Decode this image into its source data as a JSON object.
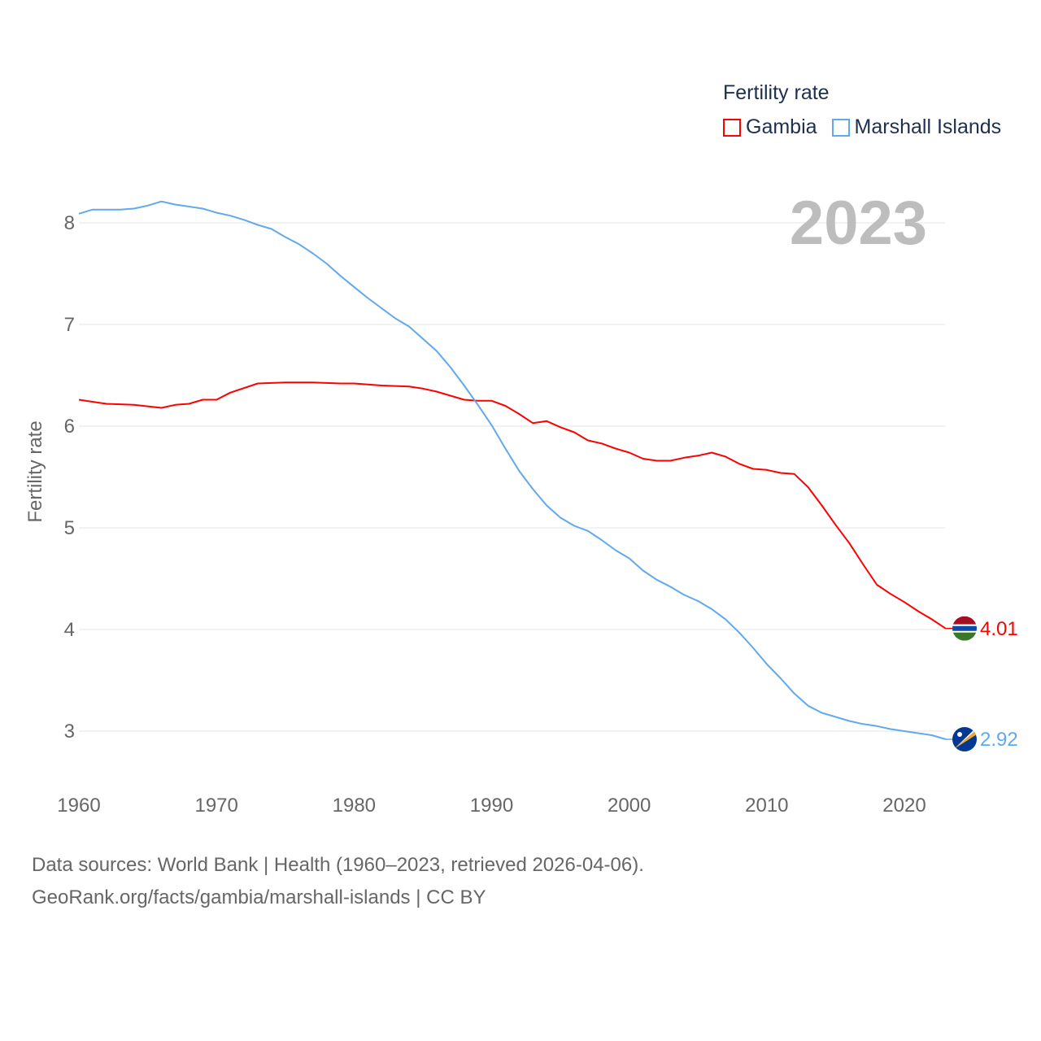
{
  "chart_data": {
    "type": "line",
    "title": "Fertility rate",
    "ylabel": "Fertility rate",
    "xlabel": "",
    "year_label": "2023",
    "xlim": [
      1960,
      2023
    ],
    "ylim": [
      2.5,
      8.2
    ],
    "x_ticks": [
      1960,
      1970,
      1980,
      1990,
      2000,
      2010,
      2020
    ],
    "y_ticks": [
      3,
      4,
      5,
      6,
      7,
      8
    ],
    "grid": true,
    "legend_position": "top-right",
    "series": [
      {
        "name": "Gambia",
        "color": "#ff0000",
        "end_label": "4.01",
        "points": [
          [
            1960,
            6.26
          ],
          [
            1962,
            6.22
          ],
          [
            1964,
            6.21
          ],
          [
            1966,
            6.18
          ],
          [
            1967,
            6.21
          ],
          [
            1968,
            6.22
          ],
          [
            1969,
            6.26
          ],
          [
            1970,
            6.26
          ],
          [
            1971,
            6.33
          ],
          [
            1973,
            6.42
          ],
          [
            1975,
            6.43
          ],
          [
            1977,
            6.43
          ],
          [
            1979,
            6.42
          ],
          [
            1980,
            6.42
          ],
          [
            1982,
            6.4
          ],
          [
            1984,
            6.39
          ],
          [
            1985,
            6.37
          ],
          [
            1986,
            6.34
          ],
          [
            1988,
            6.26
          ],
          [
            1989,
            6.25
          ],
          [
            1990,
            6.25
          ],
          [
            1991,
            6.2
          ],
          [
            1992,
            6.12
          ],
          [
            1993,
            6.03
          ],
          [
            1994,
            6.05
          ],
          [
            1995,
            5.99
          ],
          [
            1996,
            5.94
          ],
          [
            1997,
            5.86
          ],
          [
            1998,
            5.83
          ],
          [
            1999,
            5.78
          ],
          [
            2000,
            5.74
          ],
          [
            2001,
            5.68
          ],
          [
            2002,
            5.66
          ],
          [
            2003,
            5.66
          ],
          [
            2004,
            5.69
          ],
          [
            2005,
            5.71
          ],
          [
            2006,
            5.74
          ],
          [
            2007,
            5.7
          ],
          [
            2008,
            5.63
          ],
          [
            2009,
            5.58
          ],
          [
            2010,
            5.57
          ],
          [
            2011,
            5.54
          ],
          [
            2012,
            5.53
          ],
          [
            2013,
            5.4
          ],
          [
            2014,
            5.22
          ],
          [
            2015,
            5.03
          ],
          [
            2016,
            4.85
          ],
          [
            2017,
            4.64
          ],
          [
            2018,
            4.44
          ],
          [
            2019,
            4.35
          ],
          [
            2020,
            4.27
          ],
          [
            2021,
            4.18
          ],
          [
            2022,
            4.1
          ],
          [
            2023,
            4.01
          ]
        ]
      },
      {
        "name": "Marshall Islands",
        "color": "#62a8ec",
        "end_label": "2.92",
        "points": [
          [
            1960,
            8.09
          ],
          [
            1961,
            8.13
          ],
          [
            1963,
            8.13
          ],
          [
            1964,
            8.14
          ],
          [
            1965,
            8.17
          ],
          [
            1966,
            8.21
          ],
          [
            1967,
            8.18
          ],
          [
            1968,
            8.16
          ],
          [
            1969,
            8.14
          ],
          [
            1970,
            8.1
          ],
          [
            1971,
            8.07
          ],
          [
            1972,
            8.03
          ],
          [
            1973,
            7.98
          ],
          [
            1974,
            7.94
          ],
          [
            1975,
            7.86
          ],
          [
            1976,
            7.79
          ],
          [
            1977,
            7.7
          ],
          [
            1978,
            7.6
          ],
          [
            1979,
            7.48
          ],
          [
            1980,
            7.37
          ],
          [
            1981,
            7.26
          ],
          [
            1982,
            7.16
          ],
          [
            1983,
            7.06
          ],
          [
            1984,
            6.98
          ],
          [
            1985,
            6.86
          ],
          [
            1986,
            6.74
          ],
          [
            1987,
            6.58
          ],
          [
            1988,
            6.4
          ],
          [
            1989,
            6.21
          ],
          [
            1990,
            6.01
          ],
          [
            1991,
            5.78
          ],
          [
            1992,
            5.56
          ],
          [
            1993,
            5.38
          ],
          [
            1994,
            5.22
          ],
          [
            1995,
            5.1
          ],
          [
            1996,
            5.02
          ],
          [
            1997,
            4.97
          ],
          [
            1998,
            4.88
          ],
          [
            1999,
            4.78
          ],
          [
            2000,
            4.7
          ],
          [
            2001,
            4.58
          ],
          [
            2002,
            4.49
          ],
          [
            2003,
            4.42
          ],
          [
            2004,
            4.34
          ],
          [
            2005,
            4.28
          ],
          [
            2006,
            4.2
          ],
          [
            2007,
            4.1
          ],
          [
            2008,
            3.97
          ],
          [
            2009,
            3.82
          ],
          [
            2010,
            3.66
          ],
          [
            2011,
            3.52
          ],
          [
            2012,
            3.37
          ],
          [
            2013,
            3.25
          ],
          [
            2014,
            3.18
          ],
          [
            2015,
            3.14
          ],
          [
            2016,
            3.1
          ],
          [
            2017,
            3.07
          ],
          [
            2018,
            3.05
          ],
          [
            2019,
            3.02
          ],
          [
            2020,
            3.0
          ],
          [
            2021,
            2.98
          ],
          [
            2022,
            2.96
          ],
          [
            2023,
            2.92
          ]
        ]
      }
    ]
  },
  "footer": {
    "line1": "Data sources: World Bank | Health (1960–2023, retrieved 2026-04-06).",
    "line2": "GeoRank.org/facts/gambia/marshall-islands | CC BY"
  }
}
